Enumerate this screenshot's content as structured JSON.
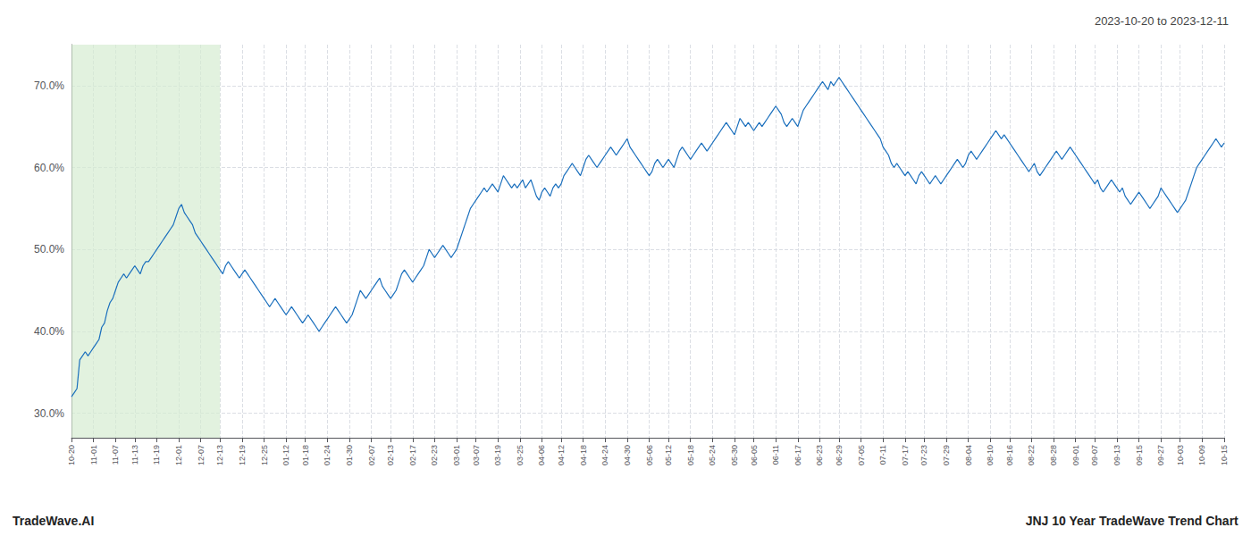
{
  "chart_data": {
    "type": "line",
    "title": "2023-10-20 to 2023-12-11",
    "annotations": [
      "TradeWave.AI",
      "JNJ 10 Year TradeWave Trend Chart"
    ],
    "color": "#1a6fbd",
    "grid": true,
    "ylim": [
      27,
      75
    ],
    "yticks": [
      {
        "value": 30,
        "label": "30.0%"
      },
      {
        "value": 40,
        "label": "40.0%"
      },
      {
        "value": 50,
        "label": "50.0%"
      },
      {
        "value": 60,
        "label": "60.0%"
      },
      {
        "value": 70,
        "label": "70.0%"
      }
    ],
    "spans": [
      {
        "from": "10-20",
        "to": "12-13",
        "color": "#d6ecd2"
      }
    ],
    "categories": [
      "10-20",
      null,
      null,
      null,
      null,
      null,
      null,
      null,
      "11-01",
      null,
      null,
      null,
      null,
      null,
      null,
      null,
      "11-07",
      null,
      null,
      null,
      null,
      null,
      null,
      "11-13",
      null,
      null,
      null,
      null,
      null,
      null,
      null,
      "11-19",
      null,
      null,
      null,
      null,
      null,
      null,
      null,
      "12-01",
      null,
      null,
      null,
      null,
      null,
      null,
      null,
      "12-07",
      null,
      null,
      null,
      null,
      null,
      null,
      "12-13",
      null,
      null,
      null,
      null,
      null,
      null,
      null,
      "12-19",
      null,
      null,
      null,
      null,
      null,
      null,
      null,
      "12-25",
      null,
      null,
      null,
      null,
      null,
      null,
      null,
      "01-12",
      null,
      null,
      null,
      null,
      null,
      null,
      "01-18",
      null,
      null,
      null,
      null,
      null,
      null,
      null,
      "01-24",
      null,
      null,
      null,
      null,
      null,
      null,
      null,
      "01-30",
      null,
      null,
      null,
      null,
      null,
      null,
      null,
      "02-07",
      null,
      null,
      null,
      null,
      null,
      null,
      "02-13",
      null,
      null,
      null,
      null,
      null,
      null,
      null,
      "02-17",
      null,
      null,
      null,
      null,
      null,
      null,
      null,
      "02-23",
      null,
      null,
      null,
      null,
      null,
      null,
      null,
      "03-01",
      null,
      null,
      null,
      null,
      null,
      null,
      "03-07",
      null,
      null,
      null,
      null,
      null,
      null,
      null,
      "03-19",
      null,
      null,
      null,
      null,
      null,
      null,
      null,
      "03-25",
      null,
      null,
      null,
      null,
      null,
      null,
      null,
      "04-06",
      null,
      null,
      null,
      null,
      null,
      null,
      "04-12",
      null,
      null,
      null,
      null,
      null,
      null,
      null,
      "04-18",
      null,
      null,
      null,
      null,
      null,
      null,
      null,
      "04-24",
      null,
      null,
      null,
      null,
      null,
      null,
      null,
      "04-30",
      null,
      null,
      null,
      null,
      null,
      null,
      null,
      "05-06",
      null,
      null,
      null,
      null,
      null,
      null,
      "05-12",
      null,
      null,
      null,
      null,
      null,
      null,
      null,
      "05-18",
      null,
      null,
      null,
      null,
      null,
      null,
      null,
      "05-24",
      null,
      null,
      null,
      null,
      null,
      null,
      null,
      "05-30",
      null,
      null,
      null,
      null,
      null,
      null,
      "06-05",
      null,
      null,
      null,
      null,
      null,
      null,
      null,
      "06-11",
      null,
      null,
      null,
      null,
      null,
      null,
      null,
      "06-17",
      null,
      null,
      null,
      null,
      null,
      null,
      null,
      "06-23",
      null,
      null,
      null,
      null,
      null,
      null,
      "06-29",
      null,
      null,
      null,
      null,
      null,
      null,
      null,
      "07-05",
      null,
      null,
      null,
      null,
      null,
      null,
      null,
      "07-11",
      null,
      null,
      null,
      null,
      null,
      null,
      null,
      "07-17",
      null,
      null,
      null,
      null,
      null,
      null,
      "07-23",
      null,
      null,
      null,
      null,
      null,
      null,
      null,
      "07-29",
      null,
      null,
      null,
      null,
      null,
      null,
      null,
      "08-04",
      null,
      null,
      null,
      null,
      null,
      null,
      null,
      "08-10",
      null,
      null,
      null,
      null,
      null,
      null,
      "08-16",
      null,
      null,
      null,
      null,
      null,
      null,
      null,
      "08-22",
      null,
      null,
      null,
      null,
      null,
      null,
      null,
      "08-28",
      null,
      null,
      null,
      null,
      null,
      null,
      null,
      "09-01",
      null,
      null,
      null,
      null,
      null,
      null,
      "09-07",
      null,
      null,
      null,
      null,
      null,
      null,
      null,
      "09-13",
      null,
      null,
      null,
      null,
      null,
      null,
      null,
      "09-15",
      null,
      null,
      null,
      null,
      null,
      null,
      null,
      "09-27",
      null,
      null,
      null,
      null,
      null,
      null,
      "10-03",
      null,
      null,
      null,
      null,
      null,
      null,
      null,
      "10-09",
      null,
      null,
      null,
      null,
      null,
      null,
      null,
      "10-15"
    ],
    "values": [
      32.0,
      32.5,
      33.0,
      36.5,
      37.0,
      37.5,
      37.0,
      37.5,
      38.0,
      38.5,
      39.0,
      40.5,
      41.0,
      42.5,
      43.5,
      44.0,
      45.0,
      46.0,
      46.5,
      47.0,
      46.5,
      47.0,
      47.5,
      48.0,
      47.5,
      47.0,
      48.0,
      48.5,
      48.5,
      49.0,
      49.5,
      50.0,
      50.5,
      51.0,
      51.5,
      52.0,
      52.5,
      53.0,
      54.0,
      55.0,
      55.5,
      54.5,
      54.0,
      53.5,
      53.0,
      52.0,
      51.5,
      51.0,
      50.5,
      50.0,
      49.5,
      49.0,
      48.5,
      48.0,
      47.5,
      47.0,
      48.0,
      48.5,
      48.0,
      47.5,
      47.0,
      46.5,
      47.0,
      47.5,
      47.0,
      46.5,
      46.0,
      45.5,
      45.0,
      44.5,
      44.0,
      43.5,
      43.0,
      43.5,
      44.0,
      43.5,
      43.0,
      42.5,
      42.0,
      42.5,
      43.0,
      42.5,
      42.0,
      41.5,
      41.0,
      41.5,
      42.0,
      41.5,
      41.0,
      40.5,
      40.0,
      40.5,
      41.0,
      41.5,
      42.0,
      42.5,
      43.0,
      42.5,
      42.0,
      41.5,
      41.0,
      41.5,
      42.0,
      43.0,
      44.0,
      45.0,
      44.5,
      44.0,
      44.5,
      45.0,
      45.5,
      46.0,
      46.5,
      45.5,
      45.0,
      44.5,
      44.0,
      44.5,
      45.0,
      46.0,
      47.0,
      47.5,
      47.0,
      46.5,
      46.0,
      46.5,
      47.0,
      47.5,
      48.0,
      49.0,
      50.0,
      49.5,
      49.0,
      49.5,
      50.0,
      50.5,
      50.0,
      49.5,
      49.0,
      49.5,
      50.0,
      51.0,
      52.0,
      53.0,
      54.0,
      55.0,
      55.5,
      56.0,
      56.5,
      57.0,
      57.5,
      57.0,
      57.5,
      58.0,
      57.5,
      57.0,
      58.0,
      59.0,
      58.5,
      58.0,
      57.5,
      58.0,
      57.5,
      58.0,
      58.5,
      57.5,
      58.0,
      58.5,
      57.5,
      56.5,
      56.0,
      57.0,
      57.5,
      57.0,
      56.5,
      57.5,
      58.0,
      57.5,
      58.0,
      59.0,
      59.5,
      60.0,
      60.5,
      60.0,
      59.5,
      59.0,
      60.0,
      61.0,
      61.5,
      61.0,
      60.5,
      60.0,
      60.5,
      61.0,
      61.5,
      62.0,
      62.5,
      62.0,
      61.5,
      62.0,
      62.5,
      63.0,
      63.5,
      62.5,
      62.0,
      61.5,
      61.0,
      60.5,
      60.0,
      59.5,
      59.0,
      59.5,
      60.5,
      61.0,
      60.5,
      60.0,
      60.5,
      61.0,
      60.5,
      60.0,
      61.0,
      62.0,
      62.5,
      62.0,
      61.5,
      61.0,
      61.5,
      62.0,
      62.5,
      63.0,
      62.5,
      62.0,
      62.5,
      63.0,
      63.5,
      64.0,
      64.5,
      65.0,
      65.5,
      65.0,
      64.5,
      64.0,
      65.0,
      66.0,
      65.5,
      65.0,
      65.5,
      65.0,
      64.5,
      65.0,
      65.5,
      65.0,
      65.5,
      66.0,
      66.5,
      67.0,
      67.5,
      67.0,
      66.5,
      65.5,
      65.0,
      65.5,
      66.0,
      65.5,
      65.0,
      66.0,
      67.0,
      67.5,
      68.0,
      68.5,
      69.0,
      69.5,
      70.0,
      70.5,
      70.0,
      69.5,
      70.5,
      70.0,
      70.5,
      71.0,
      70.5,
      70.0,
      69.5,
      69.0,
      68.5,
      68.0,
      67.5,
      67.0,
      66.5,
      66.0,
      65.5,
      65.0,
      64.5,
      64.0,
      63.5,
      62.5,
      62.0,
      61.5,
      60.5,
      60.0,
      60.5,
      60.0,
      59.5,
      59.0,
      59.5,
      59.0,
      58.5,
      58.0,
      59.0,
      59.5,
      59.0,
      58.5,
      58.0,
      58.5,
      59.0,
      58.5,
      58.0,
      58.5,
      59.0,
      59.5,
      60.0,
      60.5,
      61.0,
      60.5,
      60.0,
      60.5,
      61.5,
      62.0,
      61.5,
      61.0,
      61.5,
      62.0,
      62.5,
      63.0,
      63.5,
      64.0,
      64.5,
      64.0,
      63.5,
      64.0,
      63.5,
      63.0,
      62.5,
      62.0,
      61.5,
      61.0,
      60.5,
      60.0,
      59.5,
      60.0,
      60.5,
      59.5,
      59.0,
      59.5,
      60.0,
      60.5,
      61.0,
      61.5,
      62.0,
      61.5,
      61.0,
      61.5,
      62.0,
      62.5,
      62.0,
      61.5,
      61.0,
      60.5,
      60.0,
      59.5,
      59.0,
      58.5,
      58.0,
      58.5,
      57.5,
      57.0,
      57.5,
      58.0,
      58.5,
      58.0,
      57.5,
      57.0,
      57.5,
      56.5,
      56.0,
      55.5,
      56.0,
      56.5,
      57.0,
      56.5,
      56.0,
      55.5,
      55.0,
      55.5,
      56.0,
      56.5,
      57.5,
      57.0,
      56.5,
      56.0,
      55.5,
      55.0,
      54.5,
      55.0,
      55.5,
      56.0,
      57.0,
      58.0,
      59.0,
      60.0,
      60.5,
      61.0,
      61.5,
      62.0,
      62.5,
      63.0,
      63.5,
      63.0,
      62.5,
      63.0
    ]
  }
}
